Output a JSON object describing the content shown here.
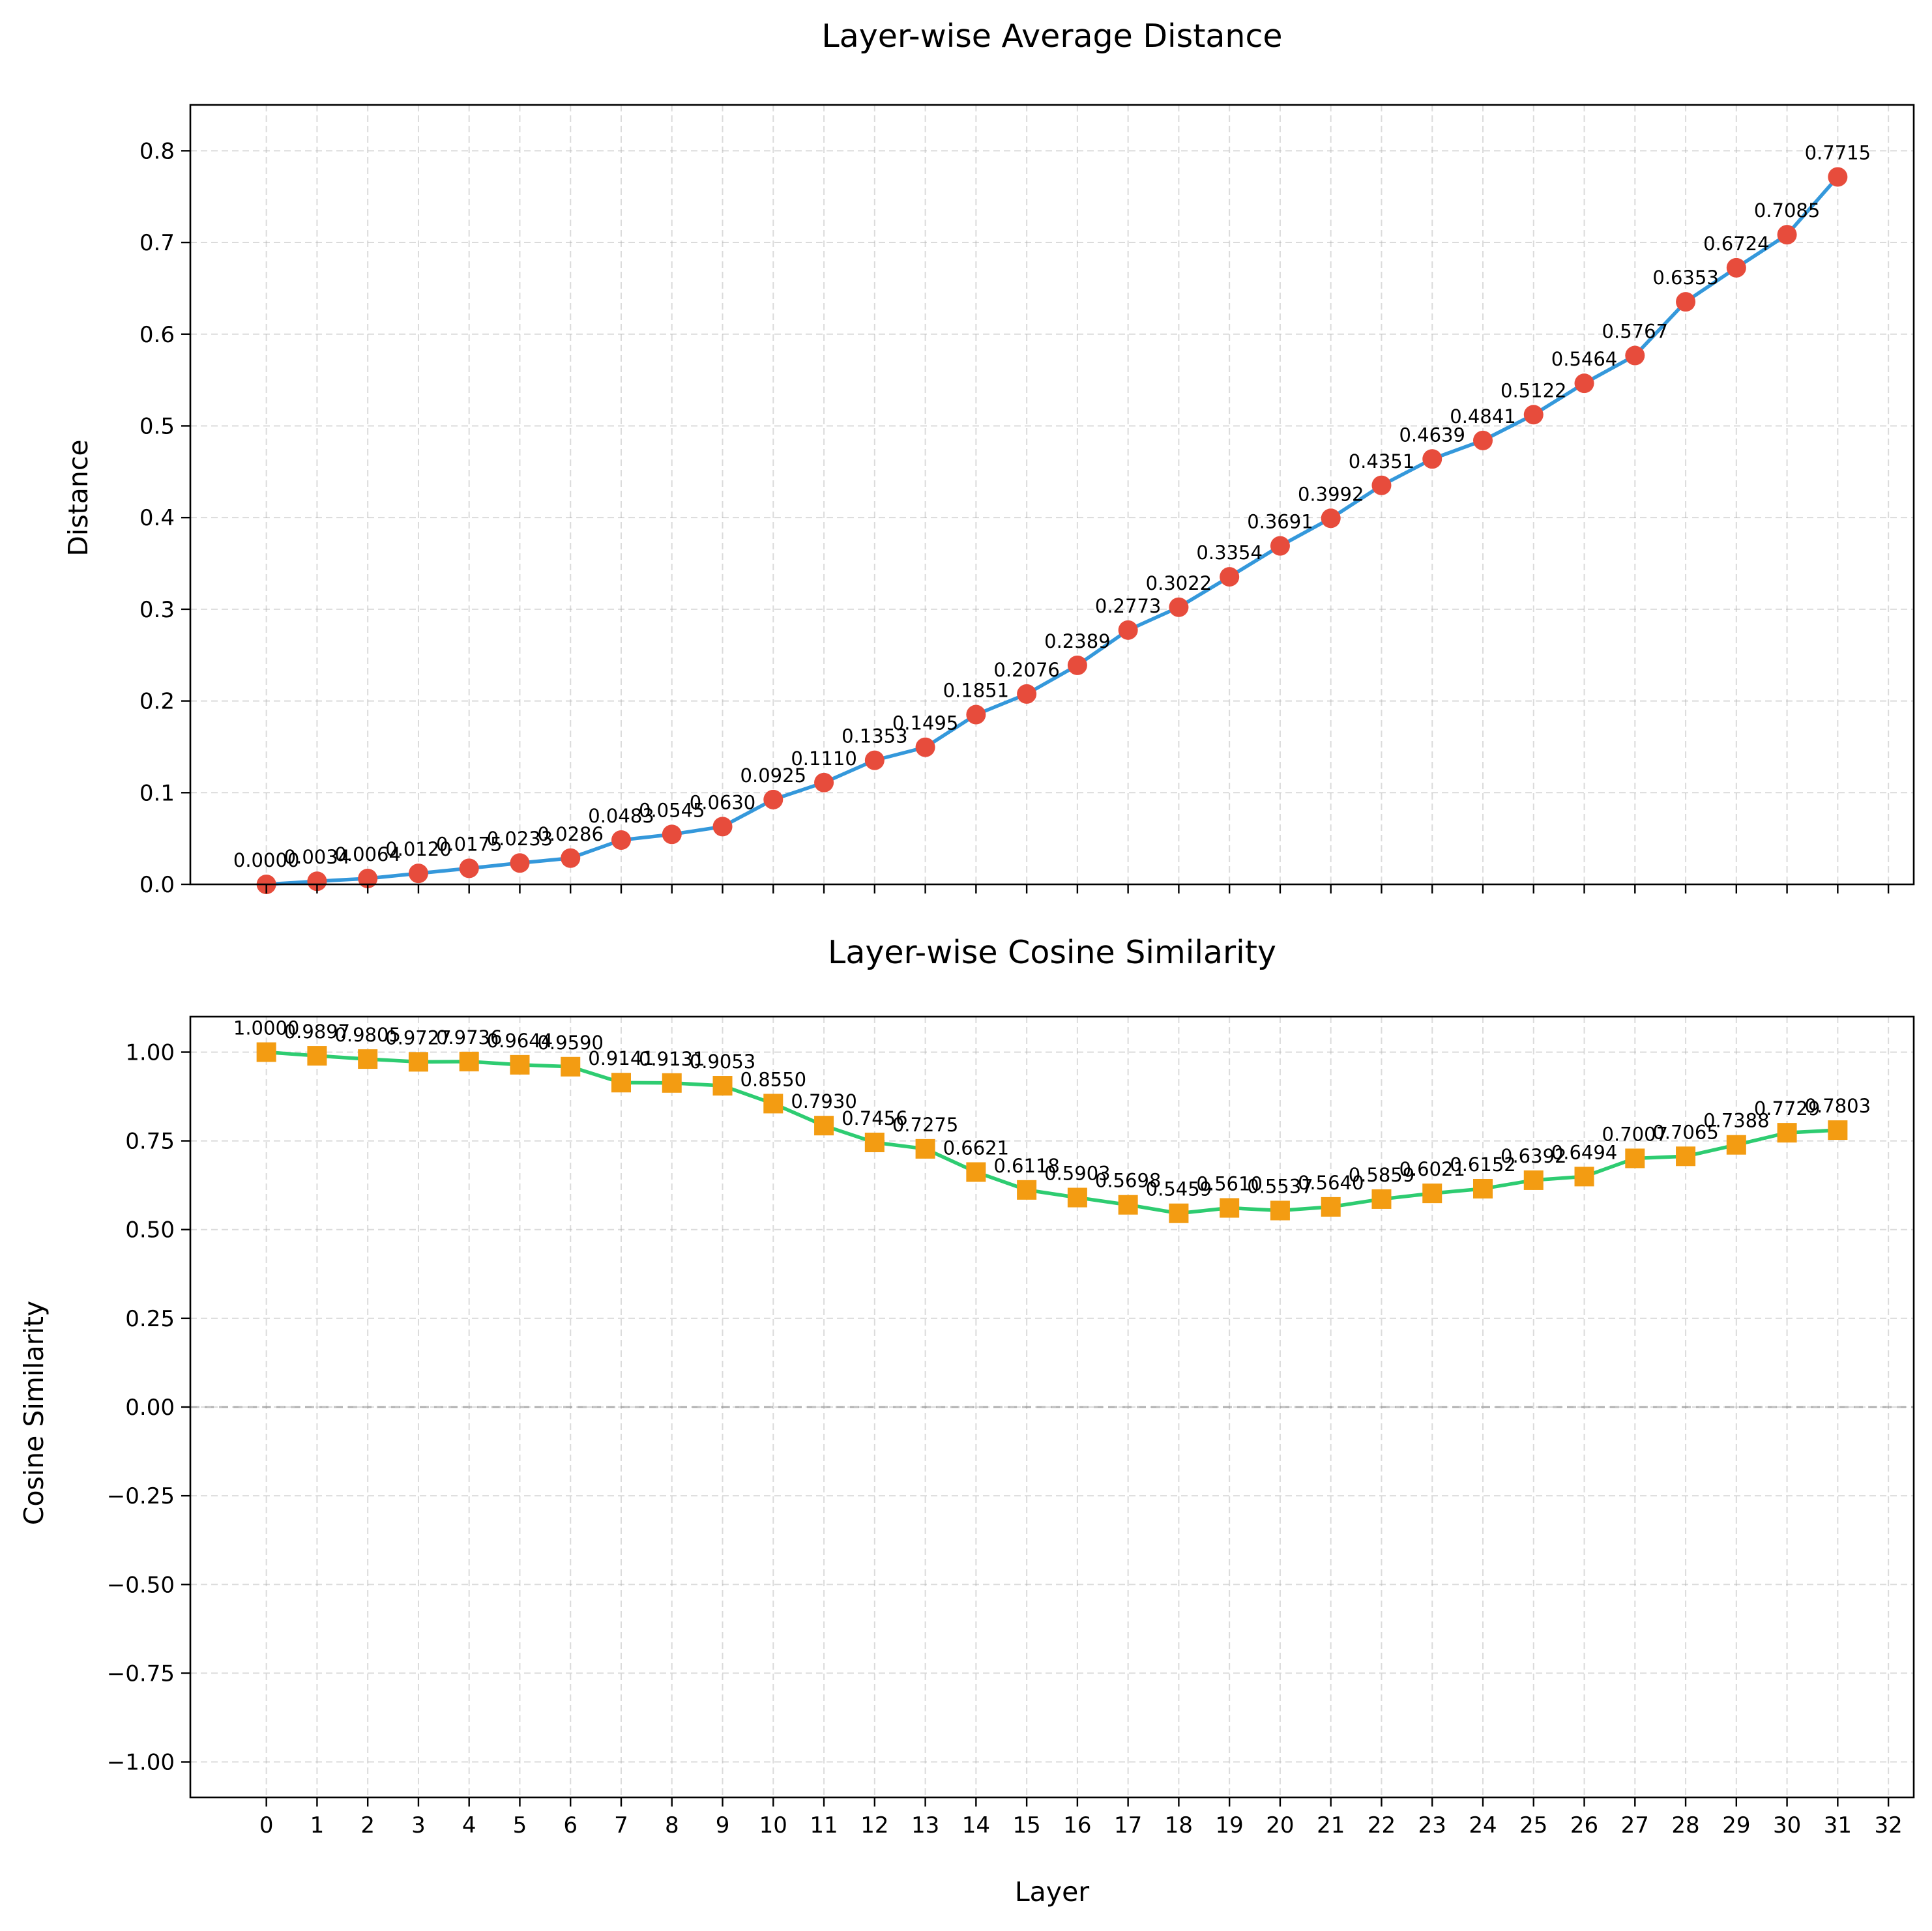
{
  "chart_data": [
    {
      "type": "line",
      "title": "Layer-wise Average Distance",
      "xlabel": "",
      "ylabel": "Distance",
      "x": [
        0,
        1,
        2,
        3,
        4,
        5,
        6,
        7,
        8,
        9,
        10,
        11,
        12,
        13,
        14,
        15,
        16,
        17,
        18,
        19,
        20,
        21,
        22,
        23,
        24,
        25,
        26,
        27,
        28,
        29,
        30,
        31
      ],
      "xlim": [
        -1.5,
        32.5
      ],
      "ylim": [
        0,
        0.85
      ],
      "xticks": [],
      "yticks": [
        "0.0",
        "0.1",
        "0.2",
        "0.3",
        "0.4",
        "0.5",
        "0.6",
        "0.7",
        "0.8"
      ],
      "grid": true,
      "series": [
        {
          "values": [
            0.0,
            0.0034,
            0.0064,
            0.012,
            0.0175,
            0.0233,
            0.0286,
            0.0483,
            0.0545,
            0.063,
            0.0925,
            0.111,
            0.1353,
            0.1495,
            0.1851,
            0.2076,
            0.2389,
            0.2773,
            0.3022,
            0.3354,
            0.3691,
            0.3992,
            0.4351,
            0.4639,
            0.4841,
            0.5122,
            0.5464,
            0.5767,
            0.6353,
            0.6724,
            0.7085,
            0.7715
          ],
          "labels": [
            "0.0000",
            "0.0034",
            "0.0064",
            "0.0120",
            "0.0175",
            "0.0233",
            "0.0286",
            "0.0483",
            "0.0545",
            "0.0630",
            "0.0925",
            "0.1110",
            "0.1353",
            "0.1495",
            "0.1851",
            "0.2076",
            "0.2389",
            "0.2773",
            "0.3022",
            "0.3354",
            "0.3691",
            "0.3992",
            "0.4351",
            "0.4639",
            "0.4841",
            "0.5122",
            "0.5464",
            "0.5767",
            "0.6353",
            "0.6724",
            "0.7085",
            "0.7715"
          ],
          "line_color": "#3498db",
          "marker": "circle",
          "marker_color": "#e74c3c"
        }
      ]
    },
    {
      "type": "line",
      "title": "Layer-wise Cosine Similarity",
      "xlabel": "Layer",
      "ylabel": "Cosine Similarity",
      "x": [
        0,
        1,
        2,
        3,
        4,
        5,
        6,
        7,
        8,
        9,
        10,
        11,
        12,
        13,
        14,
        15,
        16,
        17,
        18,
        19,
        20,
        21,
        22,
        23,
        24,
        25,
        26,
        27,
        28,
        29,
        30,
        31
      ],
      "xlim": [
        -1.5,
        32.5
      ],
      "ylim": [
        -1.1,
        1.1
      ],
      "xticks": [
        "0",
        "1",
        "2",
        "3",
        "4",
        "5",
        "6",
        "7",
        "8",
        "9",
        "10",
        "11",
        "12",
        "13",
        "14",
        "15",
        "16",
        "17",
        "18",
        "19",
        "20",
        "21",
        "22",
        "23",
        "24",
        "25",
        "26",
        "27",
        "28",
        "29",
        "30",
        "31",
        "32"
      ],
      "yticks": [
        "−1.00",
        "−0.75",
        "−0.50",
        "−0.25",
        "0.00",
        "0.25",
        "0.50",
        "0.75",
        "1.00"
      ],
      "grid": true,
      "reference_line_y": 0,
      "series": [
        {
          "values": [
            1.0,
            0.9897,
            0.9805,
            0.9727,
            0.9736,
            0.9644,
            0.959,
            0.9141,
            0.9131,
            0.9053,
            0.855,
            0.793,
            0.7456,
            0.7275,
            0.6621,
            0.6118,
            0.5903,
            0.5698,
            0.5459,
            0.561,
            0.5537,
            0.564,
            0.5859,
            0.6021,
            0.6152,
            0.6392,
            0.6494,
            0.7007,
            0.7065,
            0.7388,
            0.7729,
            0.7803
          ],
          "labels": [
            "1.0000",
            "0.9897",
            "0.9805",
            "0.9727",
            "0.9736",
            "0.9644",
            "0.9590",
            "0.9141",
            "0.9131",
            "0.9053",
            "0.8550",
            "0.7930",
            "0.7456",
            "0.7275",
            "0.6621",
            "0.6118",
            "0.5903",
            "0.5698",
            "0.5459",
            "0.5610",
            "0.5537",
            "0.5640",
            "0.5859",
            "0.6021",
            "0.6152",
            "0.6392",
            "0.6494",
            "0.7007",
            "0.7065",
            "0.7388",
            "0.7729",
            "0.7803"
          ],
          "line_color": "#2ecc71",
          "marker": "square",
          "marker_color": "#f39c12"
        }
      ]
    }
  ]
}
